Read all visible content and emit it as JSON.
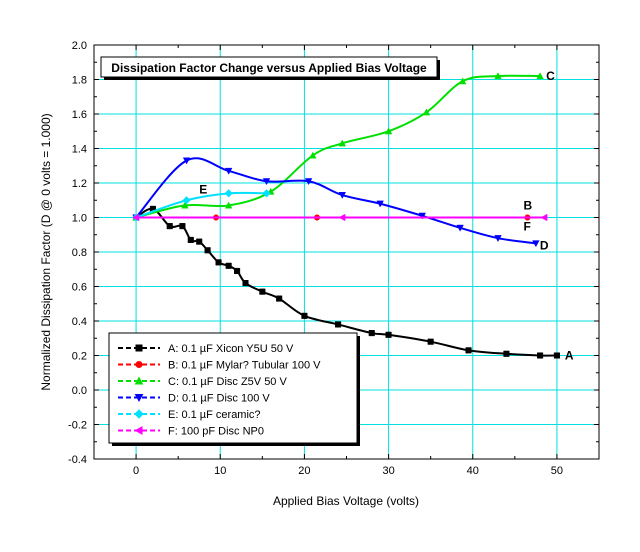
{
  "chart_data": {
    "type": "line",
    "title": "Dissipation Factor Change versus Applied Bias Voltage",
    "xlabel": "Applied Bias Voltage (volts)",
    "ylabel": "Normalized Dissipation Factor (D @ 0 volts = 1.000)",
    "xlim": [
      -5,
      55
    ],
    "ylim": [
      -0.4,
      2.0
    ],
    "x_ticks": [
      0,
      10,
      20,
      30,
      40,
      50
    ],
    "y_ticks": [
      -0.4,
      -0.2,
      0.0,
      0.2,
      0.4,
      0.6,
      0.8,
      1.0,
      1.2,
      1.4,
      1.6,
      1.8,
      2.0
    ],
    "x_tick_labels": [
      "0",
      "10",
      "20",
      "30",
      "40",
      "50"
    ],
    "y_tick_labels": [
      "-0.4",
      "-0.2",
      "0.0",
      "0.2",
      "0.4",
      "0.6",
      "0.8",
      "1.0",
      "1.2",
      "1.4",
      "1.6",
      "1.8",
      "2.0"
    ],
    "grid": true,
    "grid_color": "#00e0e0",
    "legend_position": "bottom-left",
    "series": [
      {
        "name": "A:  0.1 µF Xicon Y5U 50 V",
        "end_label": "A",
        "color": "#000000",
        "marker": "square",
        "x": [
          0,
          2,
          4,
          5.5,
          6.5,
          7.5,
          8.5,
          9.8,
          11,
          12,
          13,
          15,
          17,
          20,
          24,
          28,
          30,
          35,
          39.5,
          44,
          48,
          50
        ],
        "y": [
          1.0,
          1.05,
          0.95,
          0.95,
          0.87,
          0.86,
          0.81,
          0.74,
          0.72,
          0.69,
          0.62,
          0.57,
          0.53,
          0.43,
          0.38,
          0.33,
          0.32,
          0.28,
          0.23,
          0.21,
          0.2,
          0.2
        ]
      },
      {
        "name": "B:  0.1 µF Mylar? Tubular 100 V",
        "end_label": "B",
        "color": "#ff0000",
        "marker": "circle",
        "x": [
          0,
          9.5,
          21.5,
          46.5
        ],
        "y": [
          1.0,
          1.0,
          1.0,
          1.0
        ]
      },
      {
        "name": "C:  0.1 µF Disc Z5V 50 V",
        "end_label": "C",
        "color": "#00e000",
        "marker": "triangle-up",
        "x": [
          0,
          5.8,
          11,
          16,
          21,
          24.5,
          30,
          34.5,
          38.8,
          43,
          48
        ],
        "y": [
          1.0,
          1.07,
          1.07,
          1.15,
          1.36,
          1.43,
          1.5,
          1.61,
          1.79,
          1.82,
          1.82
        ]
      },
      {
        "name": "D:  0.1 µF Disc 100 V",
        "end_label": "D",
        "color": "#0000ff",
        "marker": "triangle-down",
        "x": [
          0,
          6,
          11,
          15.5,
          20.5,
          24.5,
          29,
          34,
          38.5,
          43,
          47.5
        ],
        "y": [
          1.0,
          1.33,
          1.27,
          1.21,
          1.21,
          1.13,
          1.08,
          1.01,
          0.94,
          0.88,
          0.85
        ]
      },
      {
        "name": "E:  0.1 µF ceramic?",
        "end_label": "E",
        "color": "#00e0ff",
        "marker": "diamond",
        "x": [
          0,
          6,
          11,
          15.5
        ],
        "y": [
          1.0,
          1.1,
          1.14,
          1.14
        ]
      },
      {
        "name": "F:  100 pF Disc NP0",
        "end_label": "F",
        "color": "#ff00ff",
        "marker": "triangle-left",
        "x": [
          0,
          24.5,
          48.5
        ],
        "y": [
          1.0,
          1.0,
          1.0
        ]
      }
    ]
  }
}
